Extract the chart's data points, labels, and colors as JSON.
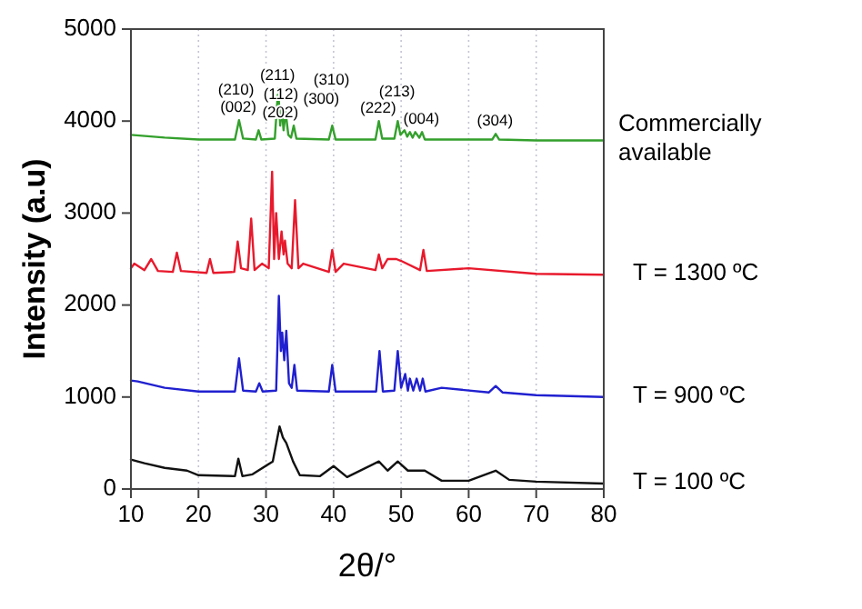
{
  "chart_data": {
    "type": "line",
    "xlabel": "2θ/°",
    "ylabel": "Intensity (a.u)",
    "xlim": [
      10,
      80
    ],
    "ylim": [
      0,
      5000
    ],
    "xticks": [
      10,
      20,
      30,
      40,
      50,
      60,
      70,
      80
    ],
    "yticks": [
      0,
      1000,
      2000,
      3000,
      4000,
      5000
    ],
    "grid": "x",
    "legend": false,
    "marker": "none",
    "line_style": "solid",
    "series": [
      {
        "name": "Commercially available",
        "color": "#33a02c",
        "x": [
          10,
          15,
          20,
          25.4,
          26,
          26.6,
          28.5,
          28.9,
          29.3,
          31.3,
          31.8,
          32.1,
          32.3,
          32.6,
          32.9,
          33.3,
          33.7,
          34.1,
          34.5,
          39.3,
          39.8,
          40.3,
          46.2,
          46.7,
          47.2,
          49,
          49.5,
          49.9,
          50.5,
          50.9,
          51.3,
          51.7,
          52.1,
          52.7,
          53.1,
          53.5,
          63.5,
          64,
          64.5,
          70,
          80
        ],
        "values": [
          3850,
          3820,
          3800,
          3800,
          4010,
          3810,
          3800,
          3900,
          3800,
          3810,
          4350,
          3950,
          4150,
          3900,
          4100,
          3850,
          3820,
          3950,
          3810,
          3800,
          3950,
          3800,
          3800,
          4000,
          3810,
          3810,
          4000,
          3850,
          3900,
          3830,
          3880,
          3820,
          3880,
          3820,
          3880,
          3800,
          3800,
          3860,
          3800,
          3790,
          3790
        ]
      },
      {
        "name": "T = 1300 ºC",
        "color": "#e8192c",
        "x": [
          10,
          10.5,
          12,
          13,
          14,
          16.2,
          16.8,
          17.4,
          21.2,
          21.7,
          22.2,
          25.3,
          25.8,
          26.3,
          27.3,
          27.8,
          28.3,
          29.4,
          30.4,
          30.9,
          31.2,
          31.5,
          31.9,
          32.3,
          32.6,
          32.8,
          33.2,
          33.8,
          34.3,
          34.8,
          35.5,
          39.3,
          39.8,
          40.3,
          41.5,
          46.2,
          46.7,
          47.2,
          48,
          49.3,
          50,
          52.8,
          53.3,
          53.8,
          60,
          70,
          80
        ],
        "values": [
          2400,
          2450,
          2380,
          2500,
          2370,
          2360,
          2570,
          2370,
          2350,
          2500,
          2350,
          2360,
          2690,
          2400,
          2380,
          2940,
          2380,
          2450,
          2400,
          3450,
          2500,
          3000,
          2500,
          2800,
          2550,
          2700,
          2450,
          2400,
          3140,
          2400,
          2450,
          2360,
          2600,
          2360,
          2450,
          2380,
          2550,
          2400,
          2500,
          2500,
          2480,
          2380,
          2600,
          2370,
          2400,
          2340,
          2330
        ]
      },
      {
        "name": "T = 900 ºC",
        "color": "#2020d0",
        "x": [
          10,
          11,
          15,
          20,
          25.4,
          26,
          26.6,
          28.5,
          29,
          29.5,
          31.5,
          31.9,
          32.2,
          32.4,
          32.7,
          33,
          33.4,
          33.8,
          34.2,
          34.6,
          39.3,
          39.8,
          40.3,
          46.3,
          46.8,
          47.3,
          49,
          49.5,
          50,
          50.6,
          51,
          51.3,
          51.8,
          52.3,
          52.8,
          53.2,
          53.6,
          56,
          63,
          64,
          65,
          70,
          80
        ],
        "values": [
          1180,
          1170,
          1100,
          1060,
          1060,
          1420,
          1070,
          1060,
          1150,
          1060,
          1070,
          2100,
          1500,
          1700,
          1400,
          1720,
          1150,
          1100,
          1350,
          1070,
          1060,
          1350,
          1060,
          1060,
          1500,
          1060,
          1070,
          1500,
          1100,
          1250,
          1070,
          1200,
          1070,
          1200,
          1070,
          1200,
          1060,
          1100,
          1050,
          1120,
          1050,
          1020,
          1000
        ]
      },
      {
        "name": "T = 100 ºC",
        "color": "#111111",
        "x": [
          10,
          12,
          15,
          18.3,
          20,
          25.4,
          25.9,
          26.5,
          28,
          31,
          32,
          32.5,
          33,
          34,
          35,
          38,
          40,
          42,
          46.7,
          48,
          49.5,
          51,
          53.5,
          56,
          60,
          64,
          66,
          70,
          80
        ],
        "values": [
          320,
          280,
          230,
          200,
          150,
          140,
          330,
          140,
          160,
          300,
          680,
          560,
          500,
          300,
          150,
          140,
          250,
          130,
          300,
          200,
          300,
          200,
          200,
          90,
          90,
          200,
          100,
          80,
          60
        ]
      }
    ],
    "annotations": [
      {
        "text": "(002)",
        "x": 26,
        "y": 4010
      },
      {
        "text": "(210)",
        "x": 28.9,
        "y": 3900
      },
      {
        "text": "(211)",
        "x": 31.8,
        "y": 4350
      },
      {
        "text": "(112)",
        "x": 32.3,
        "y": 4150
      },
      {
        "text": "(300)",
        "x": 32.9,
        "y": 4100
      },
      {
        "text": "(202)",
        "x": 34.1,
        "y": 3950
      },
      {
        "text": "(310)",
        "x": 39.8,
        "y": 3950
      },
      {
        "text": "(222)",
        "x": 46.7,
        "y": 4000
      },
      {
        "text": "(213)",
        "x": 49.5,
        "y": 4000
      },
      {
        "text": "(004)",
        "x": 53.1,
        "y": 3880
      },
      {
        "text": "(304)",
        "x": 64,
        "y": 3860
      }
    ]
  }
}
